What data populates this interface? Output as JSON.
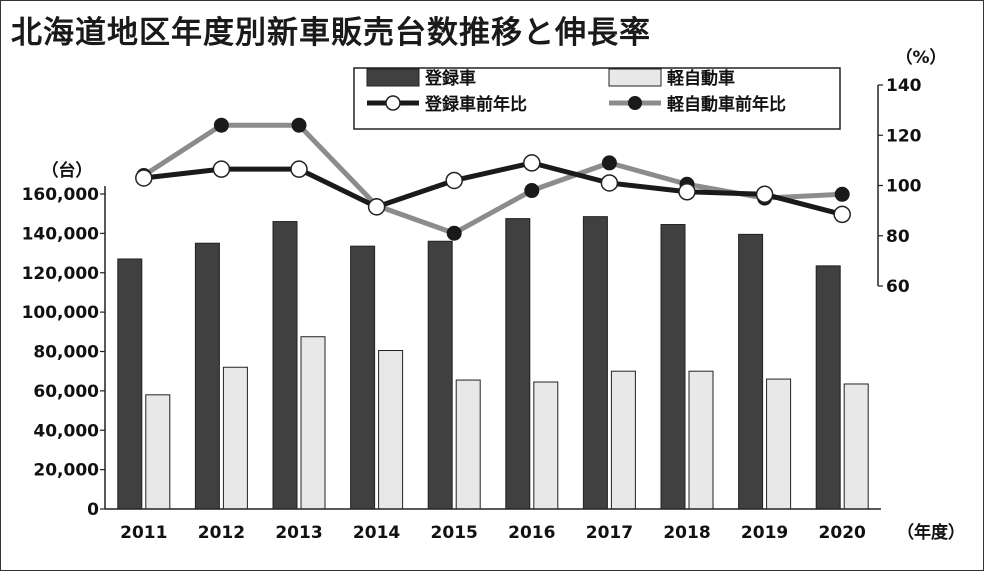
{
  "title": "北海道地区年度別新車販売台数推移と伸長率",
  "chart_data": {
    "type": "bar",
    "categories": [
      "2011",
      "2012",
      "2013",
      "2014",
      "2015",
      "2016",
      "2017",
      "2018",
      "2019",
      "2020"
    ],
    "x_unit": "（年度）",
    "y_left": {
      "unit": "（台）",
      "min": 0,
      "max": 160000,
      "step": 20000,
      "ticks": [
        "0",
        "20,000",
        "40,000",
        "60,000",
        "80,000",
        "100,000",
        "120,000",
        "140,000",
        "160,000"
      ]
    },
    "y_right": {
      "unit": "（%）",
      "min": 60,
      "max": 140,
      "step": 20,
      "ticks": [
        "60",
        "80",
        "100",
        "120",
        "140"
      ]
    },
    "series": [
      {
        "name": "登録車",
        "kind": "bar",
        "axis": "left",
        "color": "#404040",
        "values": [
          127000,
          135000,
          146000,
          133500,
          136000,
          147500,
          148500,
          144500,
          139500,
          123500
        ]
      },
      {
        "name": "軽自動車",
        "kind": "bar",
        "axis": "left",
        "color": "#e8e8e8",
        "values": [
          58000,
          72000,
          87500,
          80500,
          65500,
          64500,
          70000,
          70000,
          66000,
          63500
        ]
      },
      {
        "name": "登録車前年比",
        "kind": "line",
        "axis": "right",
        "color": "#1a1a1a",
        "marker": "open-circle",
        "values": [
          103,
          106.5,
          106.5,
          91.5,
          102,
          109,
          101,
          97.5,
          96.5,
          88.5
        ]
      },
      {
        "name": "軽自動車前年比",
        "kind": "line",
        "axis": "right",
        "color": "#8c8c8c",
        "marker": "filled-circle",
        "values": [
          104,
          124,
          124,
          92,
          81,
          98,
          109,
          100.5,
          95,
          96.5
        ]
      }
    ],
    "legend_position": "top-center",
    "grid": false
  }
}
